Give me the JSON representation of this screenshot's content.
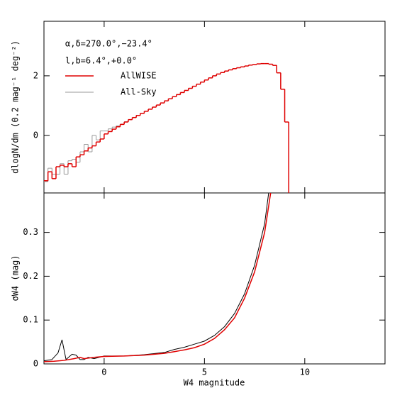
{
  "chart_data": [
    {
      "type": "histogram",
      "annotations": [
        "α,δ=270.0°,−23.4°",
        "l,b=6.4°,+0.0°"
      ],
      "ylabel": "dlogN/dm (0.2 mag⁻¹ deg⁻²)",
      "bins": [
        -3.0,
        -2.8,
        -2.6,
        -2.4,
        -2.2,
        -2.0,
        -1.8,
        -1.6,
        -1.4,
        -1.2,
        -1.0,
        -0.8,
        -0.6,
        -0.4,
        -0.2,
        0.0,
        0.2,
        0.4,
        0.6,
        0.8,
        1.0,
        1.2,
        1.4,
        1.6,
        1.8,
        2.0,
        2.2,
        2.4,
        2.6,
        2.8,
        3.0,
        3.2,
        3.4,
        3.6,
        3.8,
        4.0,
        4.2,
        4.4,
        4.6,
        4.8,
        5.0,
        5.2,
        5.4,
        5.6,
        5.8,
        6.0,
        6.2,
        6.4,
        6.6,
        6.8,
        7.0,
        7.2,
        7.4,
        7.6,
        7.8,
        8.0,
        8.2,
        8.4,
        8.6,
        8.8,
        9.0,
        9.2
      ],
      "series": [
        {
          "name": "AllWISE",
          "color": "#e00000",
          "values": [
            -1.52,
            -1.22,
            -1.45,
            -1.05,
            -1.0,
            -1.05,
            -0.95,
            -1.05,
            -0.72,
            -0.65,
            -0.52,
            -0.42,
            -0.35,
            -0.22,
            -0.12,
            0.05,
            0.13,
            0.21,
            0.29,
            0.37,
            0.45,
            0.53,
            0.6,
            0.67,
            0.74,
            0.81,
            0.88,
            0.95,
            1.02,
            1.09,
            1.16,
            1.23,
            1.3,
            1.37,
            1.44,
            1.51,
            1.58,
            1.65,
            1.72,
            1.79,
            1.86,
            1.93,
            2.0,
            2.06,
            2.11,
            2.16,
            2.2,
            2.24,
            2.27,
            2.3,
            2.33,
            2.36,
            2.38,
            2.4,
            2.41,
            2.41,
            2.39,
            2.35,
            2.1,
            1.55,
            0.45
          ]
        },
        {
          "name": "All-Sky",
          "color": "#999999",
          "values": [
            -1.55,
            -1.1,
            -1.3,
            -1.3,
            -0.95,
            -1.3,
            -0.85,
            -0.8,
            -0.9,
            -0.55,
            -0.3,
            -0.55,
            0.0,
            -0.15,
            0.15,
            0.15,
            0.22,
            0.28,
            0.32,
            0.38,
            0.46,
            0.53,
            0.6,
            0.67,
            0.74,
            0.81,
            0.88,
            0.95,
            1.02,
            1.09,
            1.16,
            1.23,
            1.3,
            1.37,
            1.44,
            1.51,
            1.58,
            1.65,
            1.72,
            1.79,
            1.86,
            1.93,
            2.0,
            2.06,
            2.11,
            2.16,
            2.2,
            2.24,
            2.27,
            2.3,
            2.33,
            2.36,
            2.38,
            2.4,
            2.41,
            2.41,
            2.39,
            2.35,
            2.1,
            1.55,
            0.45
          ]
        }
      ],
      "xlim": [
        -3,
        14
      ],
      "xticks": [
        0,
        5,
        10
      ],
      "ylim": [
        -1.93,
        3.83
      ],
      "yticks": [
        0,
        2
      ]
    },
    {
      "type": "line",
      "xlabel": "W4 magnitude",
      "ylabel": "σW4 (mag)",
      "series": [
        {
          "color": "#000000",
          "x": [
            -3,
            -2.6,
            -2.3,
            -2.1,
            -1.9,
            -1.6,
            -1.4,
            -1.2,
            -1,
            -0.8,
            -0.5,
            0,
            1,
            2,
            3,
            3.5,
            4,
            4.5,
            5,
            5.5,
            6,
            6.5,
            7,
            7.5,
            8,
            8.2
          ],
          "values": [
            0.007,
            0.01,
            0.025,
            0.055,
            0.01,
            0.022,
            0.02,
            0.01,
            0.01,
            0.015,
            0.012,
            0.018,
            0.018,
            0.021,
            0.026,
            0.033,
            0.038,
            0.045,
            0.052,
            0.065,
            0.085,
            0.115,
            0.16,
            0.225,
            0.32,
            0.39
          ]
        },
        {
          "color": "#e00000",
          "x": [
            -3,
            -2.5,
            -2,
            -1.5,
            -1.2,
            -1,
            -0.5,
            0,
            1,
            2,
            3,
            3.5,
            4,
            4.5,
            5,
            5.5,
            6,
            6.5,
            7,
            7.5,
            8,
            8.3
          ],
          "values": [
            0.005,
            0.006,
            0.008,
            0.012,
            0.015,
            0.012,
            0.015,
            0.017,
            0.018,
            0.02,
            0.024,
            0.028,
            0.032,
            0.037,
            0.045,
            0.058,
            0.078,
            0.105,
            0.15,
            0.21,
            0.3,
            0.39
          ]
        }
      ],
      "xlim": [
        -3,
        14
      ],
      "xticks": [
        0,
        5,
        10
      ],
      "ylim": [
        0,
        0.39
      ],
      "yticks": [
        0,
        0.1,
        0.2,
        0.3
      ]
    }
  ]
}
